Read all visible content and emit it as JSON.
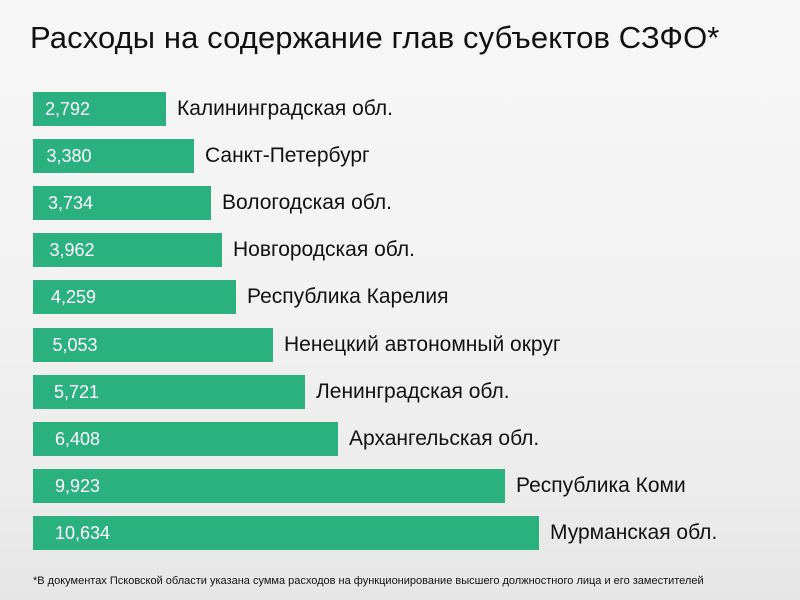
{
  "title": "Расходы на содержание глав субъектов СЗФО*",
  "footnote": "*В документах Псковской области указана сумма расходов на функционирование высшего должностного лица и его заместителей",
  "colors": {
    "bar": "#2bb080",
    "value_text": "#ffffff",
    "label_text": "#111111"
  },
  "chart_data": {
    "type": "bar",
    "orientation": "horizontal",
    "title": "Расходы на содержание глав субъектов СЗФО*",
    "xlabel": "",
    "ylabel": "",
    "grid": false,
    "legend": "none",
    "xlim": [
      0,
      10.634
    ],
    "categories": [
      "Калининградская обл.",
      "Санкт-Петербург",
      "Вологодская обл.",
      "Новгородская обл.",
      "Республика Карелия",
      "Ненецкий автономный округ",
      "Ленинградская обл.",
      "Архангельская обл.",
      "Республика Коми",
      "Мурманская обл."
    ],
    "values": [
      2.792,
      3.38,
      3.734,
      3.962,
      4.259,
      5.053,
      5.721,
      6.408,
      9.923,
      10.634
    ],
    "value_labels": [
      "2,792",
      "3,380",
      "3,734",
      "3,962",
      "4,259",
      "5,053",
      "5,721",
      "6,408",
      "9,923",
      "10,634"
    ]
  }
}
